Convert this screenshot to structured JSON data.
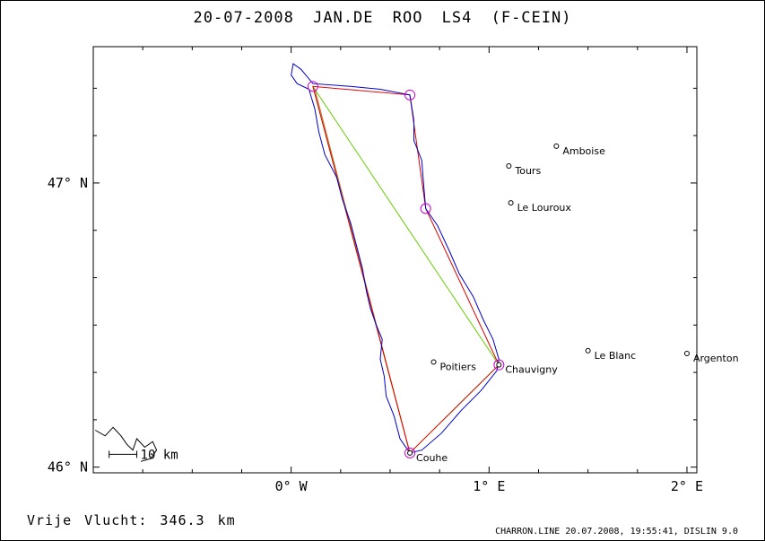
{
  "title": "20-07-2008   JAN.DE ROO   LS4 (F-CEIN)",
  "footer": {
    "distance_label": "Vrije Vlucht:  346.3 km",
    "program_info": "CHARRON.LINE 20.07.2008, 19:55:41, DISLIN 9.0"
  },
  "axes": {
    "x_ticks": [
      {
        "value": 0,
        "label": "0° W"
      },
      {
        "value": 1,
        "label": "1° E"
      },
      {
        "value": 2,
        "label": "2° E"
      }
    ],
    "y_ticks": [
      {
        "value": 46,
        "label": "46° N"
      },
      {
        "value": 47,
        "label": "47° N"
      }
    ],
    "x_range": [
      -1.0,
      2.05
    ],
    "y_range": [
      45.98,
      47.48
    ]
  },
  "scale_bar": {
    "label": "10 km"
  },
  "towns": [
    {
      "name": "Amboise",
      "lon": 1.34,
      "lat": 47.13
    },
    {
      "name": "Tours",
      "lon": 1.1,
      "lat": 47.06
    },
    {
      "name": "Le Louroux",
      "lon": 1.11,
      "lat": 46.93
    },
    {
      "name": "Poitiers",
      "lon": 0.72,
      "lat": 46.37
    },
    {
      "name": "Chauvigny",
      "lon": 1.05,
      "lat": 46.36
    },
    {
      "name": "Le Blanc",
      "lon": 1.5,
      "lat": 46.41
    },
    {
      "name": "Argenton",
      "lon": 2.0,
      "lat": 46.4
    },
    {
      "name": "Couhe",
      "lon": 0.6,
      "lat": 46.05
    }
  ],
  "turnpoints": [
    {
      "lon": 0.11,
      "lat": 47.34
    },
    {
      "lon": 0.6,
      "lat": 47.31
    },
    {
      "lon": 0.68,
      "lat": 46.91
    },
    {
      "lon": 1.05,
      "lat": 46.36
    },
    {
      "lon": 0.6,
      "lat": 46.05
    }
  ],
  "route_red": [
    {
      "lon": 0.6,
      "lat": 46.05
    },
    {
      "lon": 0.11,
      "lat": 47.34
    },
    {
      "lon": 0.6,
      "lat": 47.31
    },
    {
      "lon": 0.68,
      "lat": 46.91
    },
    {
      "lon": 1.05,
      "lat": 46.36
    },
    {
      "lon": 0.6,
      "lat": 46.05
    }
  ],
  "route_green": [
    {
      "lon": 0.6,
      "lat": 46.05
    },
    {
      "lon": 0.11,
      "lat": 47.34
    },
    {
      "lon": 1.05,
      "lat": 46.36
    },
    {
      "lon": 0.6,
      "lat": 46.05
    }
  ],
  "route_orange": [
    {
      "lon": 0.6,
      "lat": 46.05
    },
    {
      "lon": 0.12,
      "lat": 47.33
    }
  ],
  "flight_track": [
    {
      "lon": 0.6,
      "lat": 46.05
    },
    {
      "lon": 0.55,
      "lat": 46.1
    },
    {
      "lon": 0.52,
      "lat": 46.18
    },
    {
      "lon": 0.48,
      "lat": 46.25
    },
    {
      "lon": 0.47,
      "lat": 46.32
    },
    {
      "lon": 0.45,
      "lat": 46.38
    },
    {
      "lon": 0.46,
      "lat": 46.45
    },
    {
      "lon": 0.43,
      "lat": 46.5
    },
    {
      "lon": 0.4,
      "lat": 46.56
    },
    {
      "lon": 0.38,
      "lat": 46.62
    },
    {
      "lon": 0.36,
      "lat": 46.7
    },
    {
      "lon": 0.33,
      "lat": 46.78
    },
    {
      "lon": 0.3,
      "lat": 46.86
    },
    {
      "lon": 0.26,
      "lat": 46.94
    },
    {
      "lon": 0.23,
      "lat": 47.02
    },
    {
      "lon": 0.17,
      "lat": 47.1
    },
    {
      "lon": 0.14,
      "lat": 47.18
    },
    {
      "lon": 0.12,
      "lat": 47.26
    },
    {
      "lon": 0.09,
      "lat": 47.33
    },
    {
      "lon": 0.03,
      "lat": 47.35
    },
    {
      "lon": 0.0,
      "lat": 47.38
    },
    {
      "lon": 0.01,
      "lat": 47.42
    },
    {
      "lon": 0.05,
      "lat": 47.4
    },
    {
      "lon": 0.11,
      "lat": 47.35
    },
    {
      "lon": 0.3,
      "lat": 47.34
    },
    {
      "lon": 0.45,
      "lat": 47.33
    },
    {
      "lon": 0.6,
      "lat": 47.31
    },
    {
      "lon": 0.62,
      "lat": 47.22
    },
    {
      "lon": 0.62,
      "lat": 47.15
    },
    {
      "lon": 0.66,
      "lat": 47.08
    },
    {
      "lon": 0.67,
      "lat": 46.99
    },
    {
      "lon": 0.68,
      "lat": 46.91
    },
    {
      "lon": 0.74,
      "lat": 46.85
    },
    {
      "lon": 0.8,
      "lat": 46.76
    },
    {
      "lon": 0.85,
      "lat": 46.68
    },
    {
      "lon": 0.92,
      "lat": 46.6
    },
    {
      "lon": 0.97,
      "lat": 46.52
    },
    {
      "lon": 1.02,
      "lat": 46.45
    },
    {
      "lon": 1.05,
      "lat": 46.38
    },
    {
      "lon": 1.04,
      "lat": 46.34
    },
    {
      "lon": 0.96,
      "lat": 46.27
    },
    {
      "lon": 0.86,
      "lat": 46.2
    },
    {
      "lon": 0.76,
      "lat": 46.12
    },
    {
      "lon": 0.66,
      "lat": 46.06
    },
    {
      "lon": 0.6,
      "lat": 46.05
    }
  ],
  "coastline": [
    {
      "lon": -0.99,
      "lat": 46.13
    },
    {
      "lon": -0.94,
      "lat": 46.11
    },
    {
      "lon": -0.9,
      "lat": 46.14
    },
    {
      "lon": -0.86,
      "lat": 46.11
    },
    {
      "lon": -0.83,
      "lat": 46.08
    },
    {
      "lon": -0.8,
      "lat": 46.06
    },
    {
      "lon": -0.78,
      "lat": 46.1
    },
    {
      "lon": -0.74,
      "lat": 46.07
    },
    {
      "lon": -0.7,
      "lat": 46.09
    },
    {
      "lon": -0.68,
      "lat": 46.06
    },
    {
      "lon": -0.71,
      "lat": 46.03
    },
    {
      "lon": -0.76,
      "lat": 46.02
    }
  ],
  "colors": {
    "track": "#0000cc",
    "route_red": "#dd0000",
    "route_green": "#66cc00",
    "route_orange": "#b87333",
    "turnpoint": "#cc00cc",
    "axis": "#000000"
  }
}
